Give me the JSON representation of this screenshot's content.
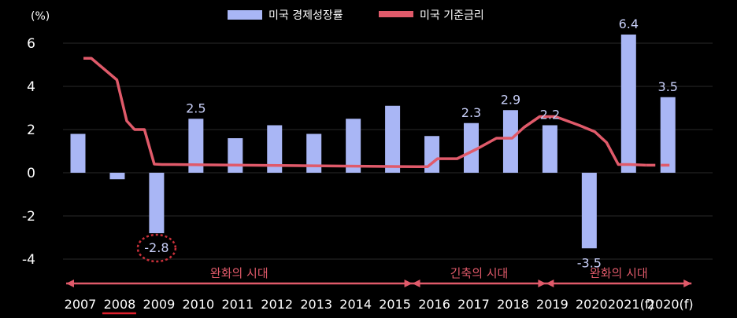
{
  "chart_data": {
    "type": "bar",
    "unit_label": "(%)",
    "categories": [
      "2007",
      "2008",
      "2009",
      "2010",
      "2011",
      "2012",
      "2013",
      "2014",
      "2015",
      "2016",
      "2017",
      "2018",
      "2019",
      "2020",
      "2021(f)",
      "2020(f)"
    ],
    "highlight_category": "2008",
    "series": [
      {
        "name": "미국 경제성장률",
        "kind": "bar",
        "color": "#a9b6f5",
        "values": [
          1.8,
          -0.3,
          -2.8,
          2.5,
          1.6,
          2.2,
          1.8,
          2.5,
          3.1,
          1.7,
          2.3,
          2.9,
          2.2,
          -3.5,
          6.4,
          3.5
        ],
        "labeled": {
          "2009": "-2.8",
          "2010": "2.5",
          "2017": "2.3",
          "2018": "2.9",
          "2019": "2.2",
          "2020": "-3.5",
          "2021(f)": "6.4",
          "2020(f)": "3.5"
        }
      },
      {
        "name": "미국 기준금리",
        "kind": "line",
        "color": "#e05a6a",
        "x": [
          0,
          0.2,
          0.85,
          1.1,
          1.3,
          1.55,
          1.8,
          2.0,
          2.3,
          8.5,
          8.75,
          9.0,
          9.5,
          10.0,
          10.5,
          10.9,
          11.2,
          11.6,
          12.0,
          12.3,
          12.6,
          13.0,
          13.3,
          13.6,
          13.9,
          14.3,
          14.9
        ],
        "y": [
          5.3,
          5.3,
          4.3,
          2.4,
          2.0,
          2.0,
          0.4,
          0.38,
          0.38,
          0.28,
          0.28,
          0.65,
          0.65,
          1.1,
          1.6,
          1.6,
          2.1,
          2.6,
          2.6,
          2.4,
          2.2,
          1.9,
          1.4,
          0.38,
          0.38,
          0.35,
          0.35
        ],
        "dashed_from_x": 14.3
      }
    ],
    "yticks": [
      -4,
      -2,
      0,
      2,
      4,
      6
    ],
    "ylim": [
      -4.5,
      6.3
    ],
    "eras": [
      {
        "label": "완화의 시대",
        "from": -0.3,
        "to": 8.5
      },
      {
        "label": "긴축의 시대",
        "from": 8.5,
        "to": 11.9
      },
      {
        "label": "완화의 시대",
        "from": 11.9,
        "to": 15.6
      }
    ]
  }
}
